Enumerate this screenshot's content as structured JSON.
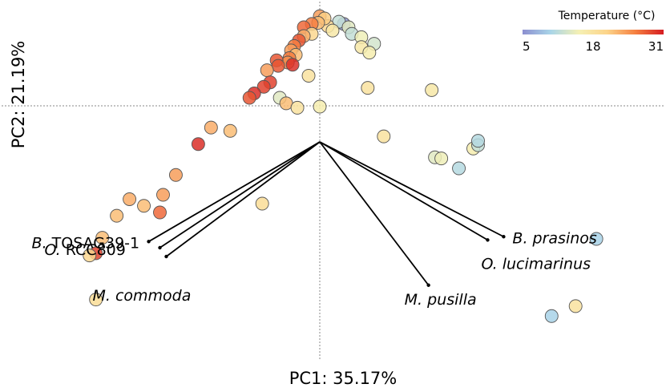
{
  "chart_data": {
    "type": "scatter",
    "title": "",
    "xlabel": "PC1: 35.17%",
    "ylabel": "PC2: 21.19%",
    "xlim": [
      -1.0,
      1.0
    ],
    "ylim": [
      -1.0,
      0.6
    ],
    "grid": false,
    "zero_lines": true,
    "colorbar": {
      "label": "Temperature (°C)",
      "min": 5,
      "max": 31,
      "ticks": [
        5,
        18,
        31
      ],
      "colors": [
        "#8c8fd0",
        "#a9d5e8",
        "#f5f0b4",
        "#fcd48a",
        "#f58040",
        "#d51c22"
      ],
      "placement": "top-right"
    },
    "loadings": [
      {
        "label_parts": [
          {
            "text": "B.",
            "italic": true
          },
          {
            "text": " TOSAG39-1",
            "italic": false
          }
        ],
        "x": -0.535,
        "y": -0.452
      },
      {
        "label_parts": [
          {
            "text": "O.",
            "italic": true
          },
          {
            "text": " RCC809",
            "italic": false
          }
        ],
        "x": -0.5,
        "y": -0.48
      },
      {
        "label_parts": [
          {
            "text": "M. commoda",
            "italic": true
          }
        ],
        "x": -0.48,
        "y": -0.52
      },
      {
        "label_parts": [
          {
            "text": "M. pusilla",
            "italic": true
          }
        ],
        "x": 0.34,
        "y": -0.65
      },
      {
        "label_parts": [
          {
            "text": "B. prasinos",
            "italic": true
          }
        ],
        "x": 0.575,
        "y": -0.43
      },
      {
        "label_parts": [
          {
            "text": "O. lucimarinus",
            "italic": true
          }
        ],
        "x": 0.525,
        "y": -0.445
      }
    ],
    "points": [
      {
        "x": 0.075,
        "y": 0.535,
        "t": 6
      },
      {
        "x": 0.06,
        "y": 0.545,
        "t": 12
      },
      {
        "x": 0.09,
        "y": 0.52,
        "t": 14
      },
      {
        "x": 0.025,
        "y": 0.525,
        "t": 20
      },
      {
        "x": 0.04,
        "y": 0.505,
        "t": 17
      },
      {
        "x": 0.1,
        "y": 0.49,
        "t": 12
      },
      {
        "x": 0.13,
        "y": 0.475,
        "t": 15
      },
      {
        "x": 0.17,
        "y": 0.445,
        "t": 13
      },
      {
        "x": 0.13,
        "y": 0.43,
        "t": 17
      },
      {
        "x": 0.155,
        "y": 0.405,
        "t": 16
      },
      {
        "x": 0.0,
        "y": 0.57,
        "t": 24
      },
      {
        "x": 0.015,
        "y": 0.56,
        "t": 21
      },
      {
        "x": -0.005,
        "y": 0.54,
        "t": 22
      },
      {
        "x": -0.025,
        "y": 0.535,
        "t": 26
      },
      {
        "x": -0.05,
        "y": 0.52,
        "t": 27
      },
      {
        "x": -0.025,
        "y": 0.49,
        "t": 20
      },
      {
        "x": -0.05,
        "y": 0.48,
        "t": 23
      },
      {
        "x": -0.065,
        "y": 0.46,
        "t": 28
      },
      {
        "x": -0.08,
        "y": 0.435,
        "t": 26
      },
      {
        "x": -0.09,
        "y": 0.415,
        "t": 24
      },
      {
        "x": -0.075,
        "y": 0.395,
        "t": 22
      },
      {
        "x": -0.095,
        "y": 0.38,
        "t": 26
      },
      {
        "x": -0.1,
        "y": 0.36,
        "t": 25
      },
      {
        "x": -0.135,
        "y": 0.37,
        "t": 28
      },
      {
        "x": -0.13,
        "y": 0.345,
        "t": 28
      },
      {
        "x": -0.165,
        "y": 0.325,
        "t": 24
      },
      {
        "x": -0.085,
        "y": 0.35,
        "t": 30
      },
      {
        "x": -0.035,
        "y": 0.3,
        "t": 18
      },
      {
        "x": -0.155,
        "y": 0.27,
        "t": 29
      },
      {
        "x": -0.175,
        "y": 0.25,
        "t": 29
      },
      {
        "x": -0.205,
        "y": 0.22,
        "t": 30
      },
      {
        "x": -0.22,
        "y": 0.2,
        "t": 28
      },
      {
        "x": -0.125,
        "y": 0.2,
        "t": 14
      },
      {
        "x": -0.105,
        "y": 0.175,
        "t": 22
      },
      {
        "x": -0.07,
        "y": 0.155,
        "t": 18
      },
      {
        "x": 0.0,
        "y": 0.16,
        "t": 16
      },
      {
        "x": 0.15,
        "y": 0.245,
        "t": 18
      },
      {
        "x": 0.35,
        "y": 0.235,
        "t": 17
      },
      {
        "x": -0.34,
        "y": 0.065,
        "t": 23
      },
      {
        "x": -0.28,
        "y": 0.05,
        "t": 22
      },
      {
        "x": -0.38,
        "y": -0.01,
        "t": 30
      },
      {
        "x": -0.45,
        "y": -0.15,
        "t": 24
      },
      {
        "x": -0.49,
        "y": -0.24,
        "t": 24
      },
      {
        "x": -0.5,
        "y": -0.32,
        "t": 27
      },
      {
        "x": -0.55,
        "y": -0.29,
        "t": 22
      },
      {
        "x": -0.595,
        "y": -0.26,
        "t": 23
      },
      {
        "x": -0.635,
        "y": -0.335,
        "t": 22
      },
      {
        "x": -0.18,
        "y": -0.28,
        "t": 19
      },
      {
        "x": -0.68,
        "y": -0.435,
        "t": 22
      },
      {
        "x": -0.7,
        "y": -0.505,
        "t": 29
      },
      {
        "x": -0.72,
        "y": -0.515,
        "t": 20
      },
      {
        "x": -0.7,
        "y": -0.715,
        "t": 19
      },
      {
        "x": 0.2,
        "y": 0.025,
        "t": 18
      },
      {
        "x": 0.36,
        "y": -0.07,
        "t": 14
      },
      {
        "x": 0.38,
        "y": -0.075,
        "t": 15
      },
      {
        "x": 0.435,
        "y": -0.12,
        "t": 11
      },
      {
        "x": 0.48,
        "y": -0.03,
        "t": 16
      },
      {
        "x": 0.495,
        "y": -0.015,
        "t": 12
      },
      {
        "x": 0.495,
        "y": 0.005,
        "t": 11
      },
      {
        "x": 0.865,
        "y": -0.44,
        "t": 10
      },
      {
        "x": 0.8,
        "y": -0.745,
        "t": 18
      },
      {
        "x": 0.725,
        "y": -0.79,
        "t": 10
      }
    ]
  }
}
